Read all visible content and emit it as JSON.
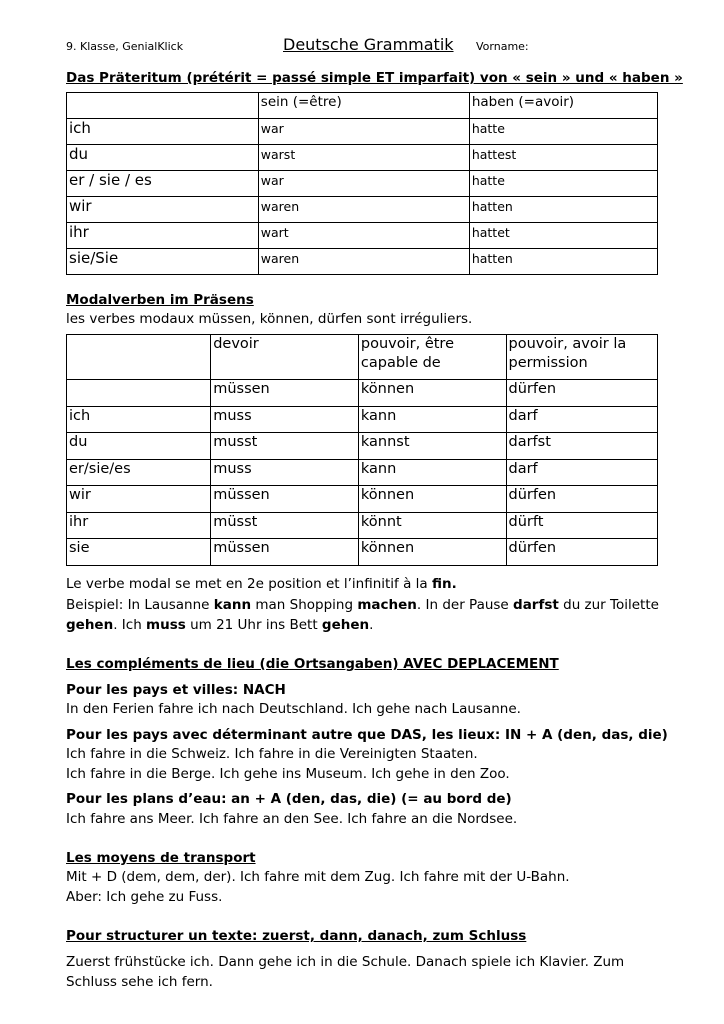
{
  "header": {
    "left": "9. Klasse, GenialKlick",
    "title": "Deutsche Grammatik",
    "right": "Vorname:"
  },
  "section1": {
    "title": "Das Präteritum (prétérit = passé simple ET imparfait) von « sein » und « haben »",
    "table": {
      "headers": [
        "",
        "sein (=être)",
        "haben (=avoir)"
      ],
      "rows": [
        [
          "ich",
          "war",
          "hatte"
        ],
        [
          "du",
          "warst",
          "hattest"
        ],
        [
          "er / sie / es",
          "war",
          "hatte"
        ],
        [
          "wir",
          "waren",
          "hatten"
        ],
        [
          "ihr",
          "wart",
          "hattet"
        ],
        [
          "sie/Sie",
          "waren",
          "hatten"
        ]
      ]
    }
  },
  "section2": {
    "title": "Modalverben im Präsens",
    "subtitle": "les verbes modaux müssen, können, dürfen sont irréguliers.",
    "table": {
      "headers": [
        "",
        "devoir",
        "pouvoir, être capable de",
        "pouvoir, avoir la permission"
      ],
      "rows": [
        [
          "",
          "müssen",
          "können",
          "dürfen"
        ],
        [
          "ich",
          "muss",
          "kann",
          "darf"
        ],
        [
          "du",
          "musst",
          "kannst",
          "darfst"
        ],
        [
          "er/sie/es",
          "muss",
          "kann",
          "darf"
        ],
        [
          "wir",
          "müssen",
          "können",
          "dürfen"
        ],
        [
          "ihr",
          "müsst",
          "könnt",
          "dürft"
        ],
        [
          "sie",
          "müssen",
          "können",
          "dürfen"
        ]
      ]
    },
    "lines": [
      [
        [
          "Le verbe modal se met en 2e position et l’infinitif à la ",
          0
        ],
        [
          "fin.",
          1
        ]
      ],
      [
        [
          "Beispiel: In Lausanne ",
          0
        ],
        [
          "kann",
          1
        ],
        [
          " man Shopping ",
          0
        ],
        [
          "machen",
          1
        ],
        [
          ". In der Pause ",
          0
        ],
        [
          "darfst",
          1
        ],
        [
          " du zur Toilette",
          0
        ]
      ],
      [
        [
          "gehen",
          1
        ],
        [
          ". Ich ",
          0
        ],
        [
          "muss",
          1
        ],
        [
          " um 21 Uhr ins Bett ",
          0
        ],
        [
          "gehen",
          1
        ],
        [
          ".",
          0
        ]
      ]
    ]
  },
  "section3": {
    "title": "Les compléments de lieu (die Ortsangaben) AVEC DEPLACEMENT",
    "rule1": "Pour les pays et villes: NACH",
    "ex1": "In den Ferien fahre ich nach Deutschland. Ich gehe nach Lausanne.",
    "rule2": "Pour les pays avec déterminant autre que DAS, les lieux: IN + A (den, das, die)",
    "ex2a": "Ich fahre in die Schweiz. Ich fahre in die Vereinigten Staaten.",
    "ex2b": "Ich fahre in die Berge. Ich gehe ins Museum. Ich gehe in den Zoo.",
    "rule3": "Pour les plans d’eau: an + A (den, das, die) (= au bord de)",
    "ex3": "Ich fahre ans Meer. Ich fahre an den See. Ich fahre an die Nordsee."
  },
  "section4": {
    "title": "Les moyens de transport",
    "l1": "Mit + D (dem, dem, der). Ich fahre mit dem Zug. Ich fahre mit der U-Bahn.",
    "l2": "Aber: Ich gehe zu Fuss."
  },
  "section5": {
    "title": "Pour structurer un texte: zuerst, dann, danach, zum Schluss",
    "l1": "Zuerst frühstücke ich. Dann gehe ich in die Schule. Danach spiele ich Klavier. Zum",
    "l2": "Schluss sehe ich fern."
  }
}
